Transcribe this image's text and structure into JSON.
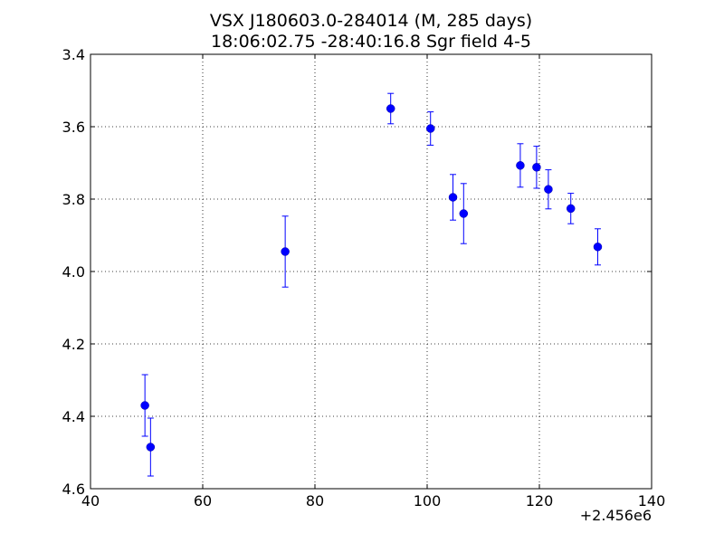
{
  "chart_data": {
    "type": "scatter",
    "title": "VSX J180603.0-284014 (M, 285 days)",
    "subtitle": "18:06:02.75 -28:40:16.8 Sgr field 4-5",
    "xlabel": "",
    "ylabel": "",
    "x_offset_label": "+2.456e6",
    "xlim": [
      40,
      140
    ],
    "ylim": [
      3.4,
      4.6
    ],
    "y_inverted": true,
    "grid": true,
    "x_ticks": [
      40,
      60,
      80,
      100,
      120,
      140
    ],
    "x_tick_labels": [
      "40",
      "60",
      "80",
      "100",
      "120",
      "140"
    ],
    "y_ticks": [
      3.4,
      3.6,
      3.8,
      4.0,
      4.2,
      4.4,
      4.6
    ],
    "y_tick_labels": [
      "3.4",
      "3.6",
      "3.8",
      "4.0",
      "4.2",
      "4.4",
      "4.6"
    ],
    "marker_color": "#0000ff",
    "points": [
      {
        "x": 49.7,
        "y": 4.37,
        "err": 0.085
      },
      {
        "x": 50.7,
        "y": 4.485,
        "err": 0.08
      },
      {
        "x": 74.7,
        "y": 3.945,
        "err": 0.098
      },
      {
        "x": 93.5,
        "y": 3.55,
        "err": 0.042
      },
      {
        "x": 100.6,
        "y": 3.605,
        "err": 0.046
      },
      {
        "x": 104.6,
        "y": 3.795,
        "err": 0.063
      },
      {
        "x": 106.5,
        "y": 3.84,
        "err": 0.083
      },
      {
        "x": 116.6,
        "y": 3.707,
        "err": 0.06
      },
      {
        "x": 119.5,
        "y": 3.712,
        "err": 0.058
      },
      {
        "x": 121.6,
        "y": 3.773,
        "err": 0.054
      },
      {
        "x": 125.6,
        "y": 3.826,
        "err": 0.042
      },
      {
        "x": 130.4,
        "y": 3.932,
        "err": 0.05
      }
    ]
  }
}
